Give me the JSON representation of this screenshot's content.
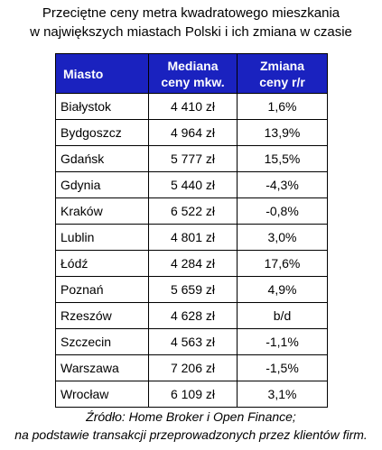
{
  "title": {
    "line1": "Przeciętne ceny metra kwadratowego mieszkania",
    "line2": "w największych miastach Polski i ich zmiana w czasie"
  },
  "table": {
    "headers": {
      "city": "Miasto",
      "price_line1": "Mediana",
      "price_line2": "ceny mkw.",
      "change_line1": "Zmiana",
      "change_line2": "ceny r/r"
    },
    "header_color": "#1a22bf",
    "rows": [
      {
        "city": "Białystok",
        "price": "4 410 zł",
        "change": "1,6%"
      },
      {
        "city": "Bydgoszcz",
        "price": "4 964 zł",
        "change": "13,9%"
      },
      {
        "city": "Gdańsk",
        "price": "5 777 zł",
        "change": "15,5%"
      },
      {
        "city": "Gdynia",
        "price": "5 440 zł",
        "change": "-4,3%"
      },
      {
        "city": "Kraków",
        "price": "6 522 zł",
        "change": "-0,8%"
      },
      {
        "city": "Lublin",
        "price": "4 801 zł",
        "change": "3,0%"
      },
      {
        "city": "Łódź",
        "price": "4 284 zł",
        "change": "17,6%"
      },
      {
        "city": "Poznań",
        "price": "5 659 zł",
        "change": "4,9%"
      },
      {
        "city": "Rzeszów",
        "price": "4 628 zł",
        "change": "b/d"
      },
      {
        "city": "Szczecin",
        "price": "4 563 zł",
        "change": "-1,1%"
      },
      {
        "city": "Warszawa",
        "price": "7 206 zł",
        "change": "-1,5%"
      },
      {
        "city": "Wrocław",
        "price": "6 109 zł",
        "change": "3,1%"
      }
    ]
  },
  "source": {
    "line1": "Źródło: Home Broker i Open Finance;",
    "line2": "na podstawie transakcji przeprowadzonych przez klientów firm."
  },
  "chart_data": {
    "type": "table",
    "title": "Przeciętne ceny metra kwadratowego mieszkania w największych miastach Polski i ich zmiana w czasie",
    "columns": [
      "Miasto",
      "Mediana ceny mkw.",
      "Zmiana ceny r/r"
    ],
    "units": {
      "price": "zł",
      "change": "%"
    },
    "categories": [
      "Białystok",
      "Bydgoszcz",
      "Gdańsk",
      "Gdynia",
      "Kraków",
      "Lublin",
      "Łódź",
      "Poznań",
      "Rzeszów",
      "Szczecin",
      "Warszawa",
      "Wrocław"
    ],
    "series": [
      {
        "name": "Mediana ceny mkw.",
        "values": [
          4410,
          4964,
          5777,
          5440,
          6522,
          4801,
          4284,
          5659,
          4628,
          4563,
          7206,
          6109
        ]
      },
      {
        "name": "Zmiana ceny r/r",
        "values": [
          1.6,
          13.9,
          15.5,
          -4.3,
          -0.8,
          3.0,
          17.6,
          4.9,
          null,
          -1.1,
          -1.5,
          3.1
        ]
      }
    ],
    "source": "Źródło: Home Broker i Open Finance; na podstawie transakcji przeprowadzonych przez klientów firm."
  }
}
